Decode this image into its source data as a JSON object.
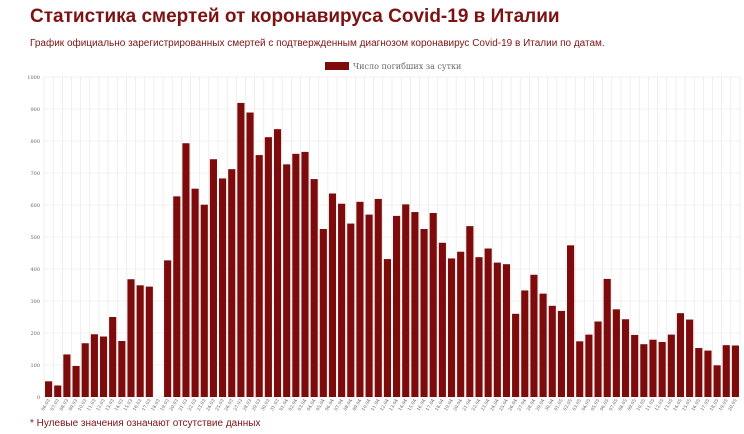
{
  "header": {
    "title": "Статистика смертей от коронавируса Covid-19 в Италии",
    "subtitle": "График официально зарегистрированных смертей с подтвержденным диагнозом коронавирус Covid-19 в Италии по датам."
  },
  "footnote": "* Нулевые значения означают отсутствие данных",
  "colors": {
    "bar": "#7d0b0b",
    "title": "#7d1212",
    "grid": "#e4e4e4"
  },
  "chart_data": {
    "type": "bar",
    "legend": {
      "label": "Число погибших за сутки",
      "position": "top-center"
    },
    "ylim": [
      0,
      1000
    ],
    "yticks": [
      0,
      100,
      200,
      300,
      400,
      500,
      600,
      700,
      800,
      900,
      1000
    ],
    "grid": true,
    "categories": [
      "06.03",
      "07.03",
      "08.03",
      "09.03",
      "10.03",
      "11.03",
      "12.03",
      "13.03",
      "14.03",
      "15.03",
      "16.03",
      "17.03",
      "18.03",
      "19.03",
      "20.03",
      "21.03",
      "22.03",
      "23.03",
      "24.03",
      "25.03",
      "26.03",
      "27.03",
      "28.03",
      "29.03",
      "30.03",
      "31.03",
      "01.04",
      "02.04",
      "03.04",
      "04.04",
      "05.04",
      "06.04",
      "07.04",
      "08.04",
      "09.04",
      "10.04",
      "11.04",
      "12.04",
      "13.04",
      "14.04",
      "15.04",
      "16.04",
      "17.04",
      "18.04",
      "19.04",
      "20.04",
      "21.04",
      "22.04",
      "23.04",
      "24.04",
      "25.04",
      "26.04",
      "27.04",
      "28.04",
      "29.04",
      "30.04",
      "01.05",
      "02.05",
      "03.05",
      "04.05",
      "05.05",
      "06.05",
      "07.05",
      "08.05",
      "09.05",
      "10.05",
      "11.05",
      "12.05",
      "13.05",
      "14.05",
      "15.05",
      "16.05",
      "17.05",
      "18.05",
      "19.05",
      "20.05"
    ],
    "series": [
      {
        "name": "Число погибших за сутки",
        "values": [
          49,
          36,
          133,
          97,
          168,
          196,
          189,
          250,
          175,
          368,
          349,
          345,
          0,
          427,
          627,
          793,
          651,
          601,
          743,
          683,
          712,
          919,
          889,
          756,
          812,
          837,
          727,
          760,
          766,
          681,
          525,
          636,
          604,
          542,
          610,
          570,
          619,
          431,
          566,
          602,
          578,
          525,
          575,
          482,
          433,
          454,
          534,
          437,
          464,
          420,
          415,
          260,
          333,
          382,
          323,
          285,
          269,
          474,
          174,
          195,
          236,
          369,
          274,
          243,
          194,
          165,
          179,
          172,
          195,
          262,
          242,
          153,
          145,
          99,
          162,
          161
        ]
      }
    ]
  }
}
